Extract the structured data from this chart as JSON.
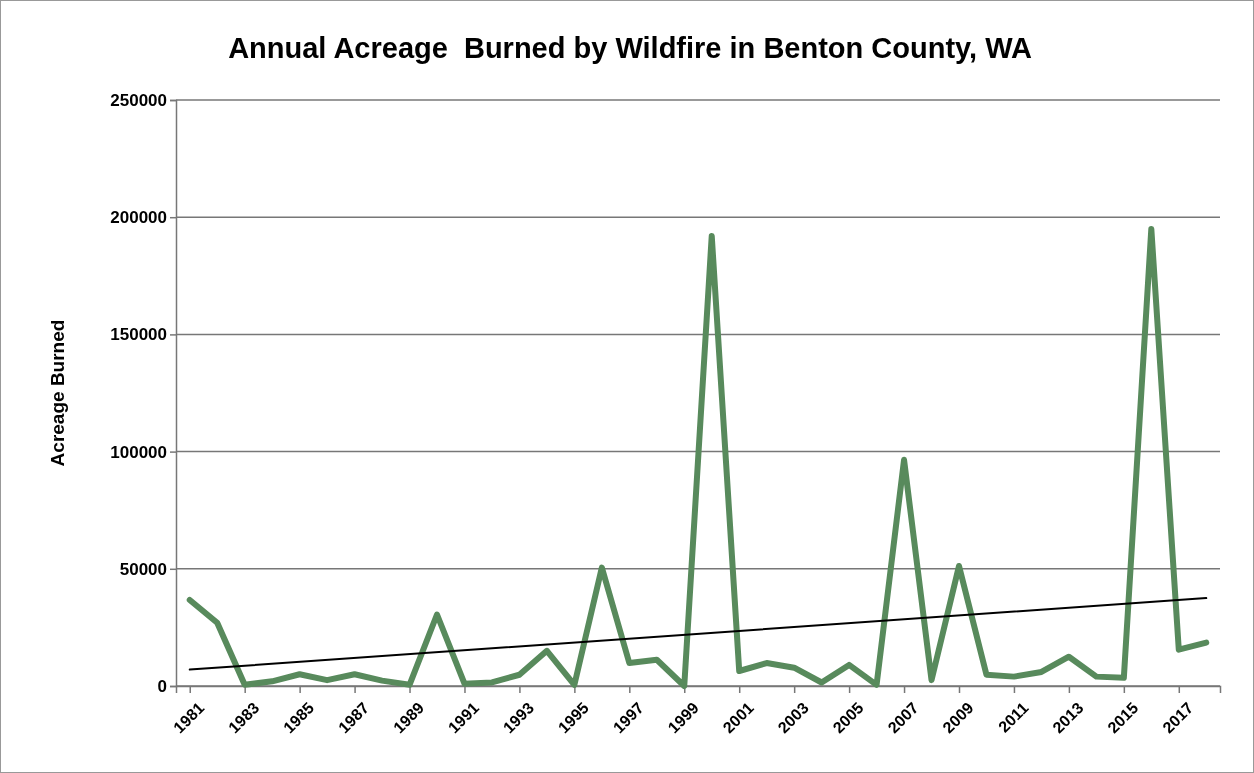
{
  "chart_data": {
    "type": "line",
    "title": "Annual Acreage  Burned by Wildfire in Benton County, WA",
    "ylabel": "Acreage Burned",
    "x": [
      1981,
      1982,
      1983,
      1984,
      1985,
      1986,
      1987,
      1988,
      1989,
      1990,
      1991,
      1992,
      1993,
      1994,
      1995,
      1996,
      1997,
      1998,
      1999,
      2000,
      2001,
      2002,
      2003,
      2004,
      2005,
      2006,
      2007,
      2008,
      2009,
      2010,
      2011,
      2012,
      2013,
      2014,
      2015,
      2016,
      2017,
      2018
    ],
    "series": [
      {
        "color": "#588a5c",
        "values": [
          36700,
          27000,
          500,
          2000,
          5000,
          2500,
          5000,
          2300,
          500,
          30500,
          1000,
          1500,
          4800,
          15000,
          500,
          50500,
          9800,
          11200,
          0,
          192000,
          6400,
          9800,
          7800,
          1500,
          9000,
          500,
          96500,
          2500,
          51200,
          4800,
          4000,
          6000,
          12500,
          4000,
          3500,
          195000,
          15500,
          18500
        ]
      },
      {
        "type": "line",
        "color": "#000000",
        "x": [
          1981,
          2018
        ],
        "values": [
          7000,
          37500
        ]
      }
    ],
    "xlim": [
      1980.5,
      2018.5
    ],
    "xticks": [
      1981,
      1983,
      1985,
      1987,
      1989,
      1991,
      1993,
      1995,
      1997,
      1999,
      2001,
      2003,
      2005,
      2007,
      2009,
      2011,
      2013,
      2015,
      2017
    ],
    "ylim": [
      0,
      250000
    ],
    "yticks": [
      0,
      50000,
      100000,
      150000,
      200000,
      250000
    ],
    "grid": "y",
    "marker": "none"
  }
}
